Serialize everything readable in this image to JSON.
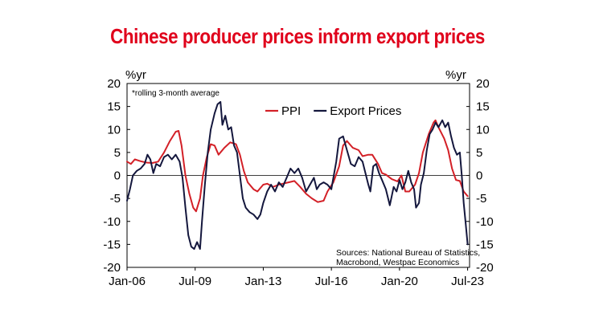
{
  "title": "Chinese producer prices inform export prices",
  "chart_data": {
    "type": "line",
    "title": "Chinese producer prices inform export prices",
    "ylabel_left": "%yr",
    "ylabel_right": "%yr",
    "note": "*rolling 3-month average",
    "source_lines": [
      "Sources: National Bureau of Statistics,",
      "Macrobond, Westpac Economics"
    ],
    "ylim": [
      -20,
      20
    ],
    "yticks": [
      20,
      15,
      10,
      5,
      0,
      -5,
      -10,
      -15,
      -20
    ],
    "xlim": [
      2006.0,
      2023.6
    ],
    "xticks": [
      {
        "label": "Jan-06",
        "x": 2006.0
      },
      {
        "label": "Jul-09",
        "x": 2009.5
      },
      {
        "label": "Jan-13",
        "x": 2013.0
      },
      {
        "label": "Jul-16",
        "x": 2016.5
      },
      {
        "label": "Jan-20",
        "x": 2020.0
      },
      {
        "label": "Jul-23",
        "x": 2023.5
      }
    ],
    "grid": false,
    "legend_position": "top-center",
    "series": [
      {
        "name": "PPI",
        "color": "#d32027",
        "points": [
          [
            2006.0,
            3.0
          ],
          [
            2006.2,
            2.5
          ],
          [
            2006.4,
            3.5
          ],
          [
            2006.7,
            3.1
          ],
          [
            2007.0,
            2.8
          ],
          [
            2007.3,
            2.7
          ],
          [
            2007.6,
            3.0
          ],
          [
            2007.9,
            5.0
          ],
          [
            2008.2,
            7.5
          ],
          [
            2008.5,
            9.5
          ],
          [
            2008.65,
            9.7
          ],
          [
            2008.8,
            6.5
          ],
          [
            2009.0,
            0.0
          ],
          [
            2009.2,
            -4.0
          ],
          [
            2009.4,
            -7.0
          ],
          [
            2009.55,
            -7.8
          ],
          [
            2009.75,
            -5.0
          ],
          [
            2009.9,
            0.0
          ],
          [
            2010.1,
            4.0
          ],
          [
            2010.3,
            6.8
          ],
          [
            2010.5,
            6.5
          ],
          [
            2010.7,
            4.5
          ],
          [
            2011.0,
            6.0
          ],
          [
            2011.3,
            7.2
          ],
          [
            2011.6,
            6.8
          ],
          [
            2011.8,
            4.5
          ],
          [
            2012.0,
            1.0
          ],
          [
            2012.2,
            -1.5
          ],
          [
            2012.5,
            -3.0
          ],
          [
            2012.7,
            -3.5
          ],
          [
            2013.0,
            -2.0
          ],
          [
            2013.2,
            -1.8
          ],
          [
            2013.5,
            -2.5
          ],
          [
            2013.8,
            -2.0
          ],
          [
            2014.0,
            -1.8
          ],
          [
            2014.3,
            -1.5
          ],
          [
            2014.6,
            -1.2
          ],
          [
            2014.9,
            -2.5
          ],
          [
            2015.2,
            -4.0
          ],
          [
            2015.5,
            -5.0
          ],
          [
            2015.8,
            -5.8
          ],
          [
            2016.1,
            -5.5
          ],
          [
            2016.3,
            -3.5
          ],
          [
            2016.6,
            -1.5
          ],
          [
            2016.9,
            2.0
          ],
          [
            2017.1,
            6.5
          ],
          [
            2017.3,
            7.5
          ],
          [
            2017.6,
            6.0
          ],
          [
            2017.9,
            5.5
          ],
          [
            2018.1,
            4.2
          ],
          [
            2018.4,
            4.5
          ],
          [
            2018.6,
            4.5
          ],
          [
            2018.9,
            2.5
          ],
          [
            2019.1,
            0.5
          ],
          [
            2019.3,
            0.2
          ],
          [
            2019.6,
            -0.8
          ],
          [
            2019.9,
            -1.3
          ],
          [
            2020.1,
            0.0
          ],
          [
            2020.3,
            -3.5
          ],
          [
            2020.5,
            -3.5
          ],
          [
            2020.8,
            -2.0
          ],
          [
            2021.0,
            0.5
          ],
          [
            2021.2,
            5.0
          ],
          [
            2021.5,
            9.0
          ],
          [
            2021.75,
            11.5
          ],
          [
            2021.85,
            12.0
          ],
          [
            2022.0,
            10.5
          ],
          [
            2022.3,
            8.0
          ],
          [
            2022.5,
            5.5
          ],
          [
            2022.7,
            1.5
          ],
          [
            2022.9,
            -1.0
          ],
          [
            2023.1,
            -1.2
          ],
          [
            2023.3,
            -3.5
          ],
          [
            2023.5,
            -4.5
          ]
        ]
      },
      {
        "name": "Export Prices",
        "color": "#14173d",
        "points": [
          [
            2006.0,
            -5.5
          ],
          [
            2006.15,
            -3.0
          ],
          [
            2006.3,
            0.0
          ],
          [
            2006.5,
            1.0
          ],
          [
            2006.7,
            1.5
          ],
          [
            2006.9,
            2.5
          ],
          [
            2007.05,
            4.5
          ],
          [
            2007.2,
            3.5
          ],
          [
            2007.35,
            0.5
          ],
          [
            2007.5,
            2.5
          ],
          [
            2007.7,
            2.0
          ],
          [
            2007.9,
            4.0
          ],
          [
            2008.1,
            4.5
          ],
          [
            2008.3,
            3.5
          ],
          [
            2008.5,
            4.5
          ],
          [
            2008.7,
            3.0
          ],
          [
            2008.85,
            -0.5
          ],
          [
            2009.0,
            -7.0
          ],
          [
            2009.15,
            -13.0
          ],
          [
            2009.3,
            -15.5
          ],
          [
            2009.45,
            -16.0
          ],
          [
            2009.6,
            -14.5
          ],
          [
            2009.75,
            -16.0
          ],
          [
            2009.85,
            -10.0
          ],
          [
            2010.0,
            -2.0
          ],
          [
            2010.15,
            5.0
          ],
          [
            2010.3,
            10.0
          ],
          [
            2010.5,
            13.5
          ],
          [
            2010.65,
            15.5
          ],
          [
            2010.8,
            16.0
          ],
          [
            2010.9,
            11.0
          ],
          [
            2011.05,
            13.0
          ],
          [
            2011.2,
            10.0
          ],
          [
            2011.35,
            10.5
          ],
          [
            2011.5,
            6.5
          ],
          [
            2011.65,
            5.0
          ],
          [
            2011.8,
            0.0
          ],
          [
            2011.95,
            -5.0
          ],
          [
            2012.1,
            -7.0
          ],
          [
            2012.3,
            -8.0
          ],
          [
            2012.5,
            -8.5
          ],
          [
            2012.7,
            -9.5
          ],
          [
            2012.85,
            -8.5
          ],
          [
            2013.0,
            -6.0
          ],
          [
            2013.2,
            -3.5
          ],
          [
            2013.4,
            -2.0
          ],
          [
            2013.6,
            -3.5
          ],
          [
            2013.8,
            -1.5
          ],
          [
            2014.0,
            -2.5
          ],
          [
            2014.2,
            -0.5
          ],
          [
            2014.4,
            1.5
          ],
          [
            2014.6,
            0.5
          ],
          [
            2014.8,
            1.5
          ],
          [
            2015.0,
            -0.5
          ],
          [
            2015.2,
            -3.5
          ],
          [
            2015.4,
            -2.0
          ],
          [
            2015.6,
            -0.5
          ],
          [
            2015.75,
            -3.0
          ],
          [
            2015.9,
            -2.0
          ],
          [
            2016.1,
            -1.5
          ],
          [
            2016.3,
            -2.0
          ],
          [
            2016.5,
            -3.0
          ],
          [
            2016.6,
            -0.5
          ],
          [
            2016.75,
            3.0
          ],
          [
            2016.9,
            8.0
          ],
          [
            2017.1,
            8.5
          ],
          [
            2017.3,
            5.5
          ],
          [
            2017.5,
            2.5
          ],
          [
            2017.7,
            2.0
          ],
          [
            2017.9,
            4.0
          ],
          [
            2018.1,
            3.0
          ],
          [
            2018.25,
            0.5
          ],
          [
            2018.4,
            -2.0
          ],
          [
            2018.5,
            -3.5
          ],
          [
            2018.65,
            2.0
          ],
          [
            2018.8,
            2.5
          ],
          [
            2018.95,
            0.5
          ],
          [
            2019.1,
            -1.0
          ],
          [
            2019.3,
            -3.0
          ],
          [
            2019.5,
            -6.5
          ],
          [
            2019.6,
            -4.5
          ],
          [
            2019.7,
            -2.5
          ],
          [
            2019.85,
            -3.5
          ],
          [
            2020.0,
            -1.0
          ],
          [
            2020.15,
            -3.0
          ],
          [
            2020.3,
            -1.5
          ],
          [
            2020.45,
            1.0
          ],
          [
            2020.6,
            -1.5
          ],
          [
            2020.75,
            -3.0
          ],
          [
            2020.85,
            -7.0
          ],
          [
            2021.0,
            -6.0
          ],
          [
            2021.1,
            -2.0
          ],
          [
            2021.25,
            0.5
          ],
          [
            2021.4,
            5.5
          ],
          [
            2021.55,
            9.0
          ],
          [
            2021.7,
            10.0
          ],
          [
            2021.85,
            11.5
          ],
          [
            2022.0,
            10.5
          ],
          [
            2022.2,
            12.0
          ],
          [
            2022.35,
            10.5
          ],
          [
            2022.5,
            11.5
          ],
          [
            2022.65,
            8.5
          ],
          [
            2022.8,
            6.0
          ],
          [
            2022.95,
            4.5
          ],
          [
            2023.1,
            5.0
          ],
          [
            2023.2,
            0.0
          ],
          [
            2023.3,
            -6.0
          ],
          [
            2023.4,
            -10.5
          ],
          [
            2023.5,
            -15.0
          ]
        ]
      }
    ]
  }
}
